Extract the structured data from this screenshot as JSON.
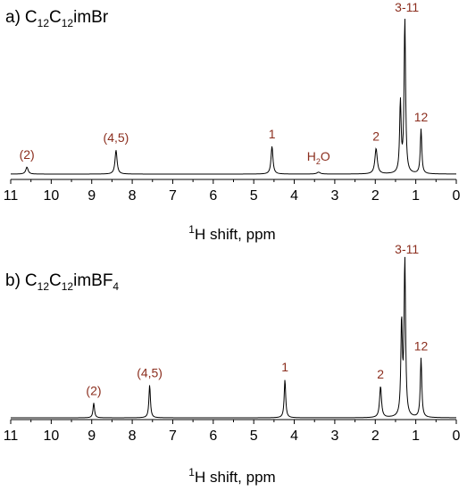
{
  "chart_data": [
    {
      "type": "line",
      "panel": "a)",
      "compound": "C12C12imBr",
      "title_parts": {
        "c1": "C",
        "n1": "12",
        "c2": "C",
        "n2": "12",
        "rest": "imBr"
      },
      "xlabel": {
        "sup": "1",
        "text": "H shift, ppm"
      },
      "xlim": [
        11,
        0
      ],
      "x_ticks": [
        11,
        10,
        9,
        8,
        7,
        6,
        5,
        4,
        3,
        2,
        1,
        0
      ],
      "peaks": [
        {
          "x": 10.6,
          "height": 0.045,
          "width": 0.035,
          "label": "(2)",
          "lx": 10.6
        },
        {
          "x": 8.4,
          "height": 0.155,
          "width": 0.03,
          "label": "(4,5)",
          "lx": 8.4
        },
        {
          "x": 4.55,
          "height": 0.18,
          "width": 0.028,
          "label": "1",
          "lx": 4.55
        },
        {
          "x": 3.4,
          "height": 0.012,
          "width": 0.05,
          "label": "H2O",
          "lx": 3.4,
          "label_parts": {
            "h": "H",
            "n": "2",
            "o": "O"
          }
        },
        {
          "x": 1.98,
          "height": 0.165,
          "width": 0.035,
          "label": "2",
          "lx": 1.98
        },
        {
          "x": 1.27,
          "height": 1.0,
          "width": 0.022,
          "label": "3-11",
          "lx": 1.22
        },
        {
          "x": 1.38,
          "height": 0.46,
          "width": 0.022,
          "label": "",
          "lx": 1.38
        },
        {
          "x": 0.87,
          "height": 0.29,
          "width": 0.022,
          "label": "12",
          "lx": 0.87
        }
      ]
    },
    {
      "type": "line",
      "panel": "b)",
      "compound": "C12C12imBF4",
      "title_parts": {
        "c1": "C",
        "n1": "12",
        "c2": "C",
        "n2": "12",
        "rest": "imBF",
        "n3": "4"
      },
      "xlabel": {
        "sup": "1",
        "text": "H shift, ppm"
      },
      "xlim": [
        11,
        0
      ],
      "x_ticks": [
        11,
        10,
        9,
        8,
        7,
        6,
        5,
        4,
        3,
        2,
        1,
        0
      ],
      "peaks": [
        {
          "x": 8.95,
          "height": 0.095,
          "width": 0.022,
          "label": "(2)",
          "lx": 8.95
        },
        {
          "x": 7.57,
          "height": 0.21,
          "width": 0.022,
          "label": "(4,5)",
          "lx": 7.57
        },
        {
          "x": 4.23,
          "height": 0.245,
          "width": 0.022,
          "label": "1",
          "lx": 4.23
        },
        {
          "x": 1.87,
          "height": 0.2,
          "width": 0.028,
          "label": "2",
          "lx": 1.87
        },
        {
          "x": 1.27,
          "height": 1.0,
          "width": 0.022,
          "label": "3-11",
          "lx": 1.22
        },
        {
          "x": 1.35,
          "height": 0.6,
          "width": 0.022,
          "label": "",
          "lx": 1.35
        },
        {
          "x": 0.87,
          "height": 0.38,
          "width": 0.022,
          "label": "12",
          "lx": 0.87
        }
      ]
    }
  ]
}
